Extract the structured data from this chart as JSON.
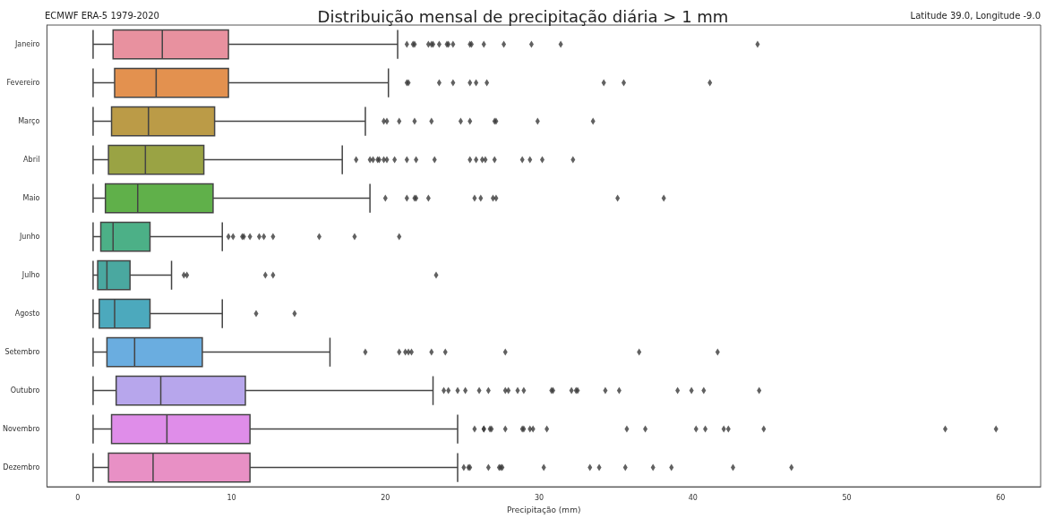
{
  "chart_data": {
    "type": "box",
    "orientation": "horizontal",
    "title": "Distribuição mensal de precipitação diária > 1 mm",
    "xlabel": "Precipitação (mm)",
    "annotations": [
      "ECMWF ERA-5 1979-2020",
      "Latitude 39.0, Longitude -9.0"
    ],
    "categories": [
      "Janeiro",
      "Fevereiro",
      "Março",
      "Abril",
      "Maio",
      "Junho",
      "Julho",
      "Agosto",
      "Setembro",
      "Outubro",
      "Novembro",
      "Dezembro"
    ],
    "colors": [
      "#e8919f",
      "#e3914f",
      "#bb9b47",
      "#9aa344",
      "#60b04a",
      "#4cb087",
      "#4aa8a0",
      "#4ca9bd",
      "#6aade0",
      "#b7a6ec",
      "#df8de9",
      "#e890c5"
    ],
    "xlim": [
      -2.0,
      62.6
    ],
    "xticks": [
      0,
      10,
      20,
      30,
      40,
      50,
      60
    ],
    "grid": false,
    "marker": "diamond",
    "boxes": [
      {
        "low": 1.0,
        "q1": 2.3,
        "median": 5.5,
        "q3": 9.8,
        "high": 20.8,
        "outliers": [
          21.4,
          21.8,
          21.9,
          22.8,
          23.0,
          23.1,
          23.5,
          24.0,
          24.1,
          24.4,
          25.5,
          25.6,
          26.4,
          27.7,
          29.5,
          31.4,
          44.2
        ]
      },
      {
        "low": 1.0,
        "q1": 2.4,
        "median": 5.1,
        "q3": 9.8,
        "high": 20.2,
        "outliers": [
          21.4,
          21.5,
          23.5,
          24.4,
          25.5,
          25.9,
          26.6,
          34.2,
          35.5,
          41.1
        ]
      },
      {
        "low": 1.0,
        "q1": 2.2,
        "median": 4.6,
        "q3": 8.9,
        "high": 18.7,
        "outliers": [
          19.9,
          20.1,
          20.9,
          21.9,
          23.0,
          24.9,
          25.5,
          27.1,
          27.2,
          29.9,
          33.5
        ]
      },
      {
        "low": 1.0,
        "q1": 2.0,
        "median": 4.4,
        "q3": 8.2,
        "high": 17.2,
        "outliers": [
          18.1,
          19.0,
          19.2,
          19.5,
          19.6,
          19.9,
          20.1,
          20.6,
          21.4,
          22.0,
          23.2,
          25.5,
          25.9,
          26.3,
          26.5,
          27.1,
          28.9,
          29.4,
          30.2,
          32.2
        ]
      },
      {
        "low": 1.0,
        "q1": 1.8,
        "median": 3.9,
        "q3": 8.8,
        "high": 19.0,
        "outliers": [
          20.0,
          21.4,
          21.9,
          22.0,
          22.8,
          25.8,
          26.2,
          27.0,
          27.2,
          35.1,
          38.1
        ]
      },
      {
        "low": 1.0,
        "q1": 1.5,
        "median": 2.3,
        "q3": 4.7,
        "high": 9.4,
        "outliers": [
          9.8,
          10.1,
          10.7,
          10.8,
          11.2,
          11.8,
          12.1,
          12.7,
          15.7,
          18.0,
          20.9
        ]
      },
      {
        "low": 1.0,
        "q1": 1.3,
        "median": 1.9,
        "q3": 3.4,
        "high": 6.1,
        "outliers": [
          6.9,
          7.1,
          12.2,
          12.7,
          23.3
        ]
      },
      {
        "low": 1.0,
        "q1": 1.4,
        "median": 2.4,
        "q3": 4.7,
        "high": 9.4,
        "outliers": [
          11.6,
          14.1
        ]
      },
      {
        "low": 1.0,
        "q1": 1.9,
        "median": 3.7,
        "q3": 8.1,
        "high": 16.4,
        "outliers": [
          18.7,
          20.9,
          21.3,
          21.5,
          21.7,
          23.0,
          23.9,
          27.8,
          36.5,
          41.6
        ]
      },
      {
        "low": 1.0,
        "q1": 2.5,
        "median": 5.4,
        "q3": 10.9,
        "high": 23.1,
        "outliers": [
          23.8,
          24.1,
          24.7,
          25.2,
          26.1,
          26.7,
          27.8,
          28.0,
          28.6,
          29.0,
          30.8,
          30.9,
          32.1,
          32.4,
          32.5,
          34.3,
          35.2,
          39.0,
          39.9,
          40.7,
          44.3
        ]
      },
      {
        "low": 1.0,
        "q1": 2.2,
        "median": 5.8,
        "q3": 11.2,
        "high": 24.7,
        "outliers": [
          25.8,
          26.4,
          26.4,
          26.8,
          26.9,
          27.8,
          28.9,
          29.0,
          29.4,
          29.6,
          30.5,
          35.7,
          36.9,
          40.2,
          40.8,
          42.0,
          42.3,
          44.6,
          56.4,
          59.7
        ]
      },
      {
        "low": 1.0,
        "q1": 2.0,
        "median": 4.9,
        "q3": 11.2,
        "high": 24.7,
        "outliers": [
          25.1,
          25.4,
          25.5,
          26.7,
          27.4,
          27.5,
          27.6,
          30.3,
          33.3,
          33.9,
          35.6,
          37.4,
          38.6,
          42.6,
          46.4
        ]
      }
    ]
  }
}
